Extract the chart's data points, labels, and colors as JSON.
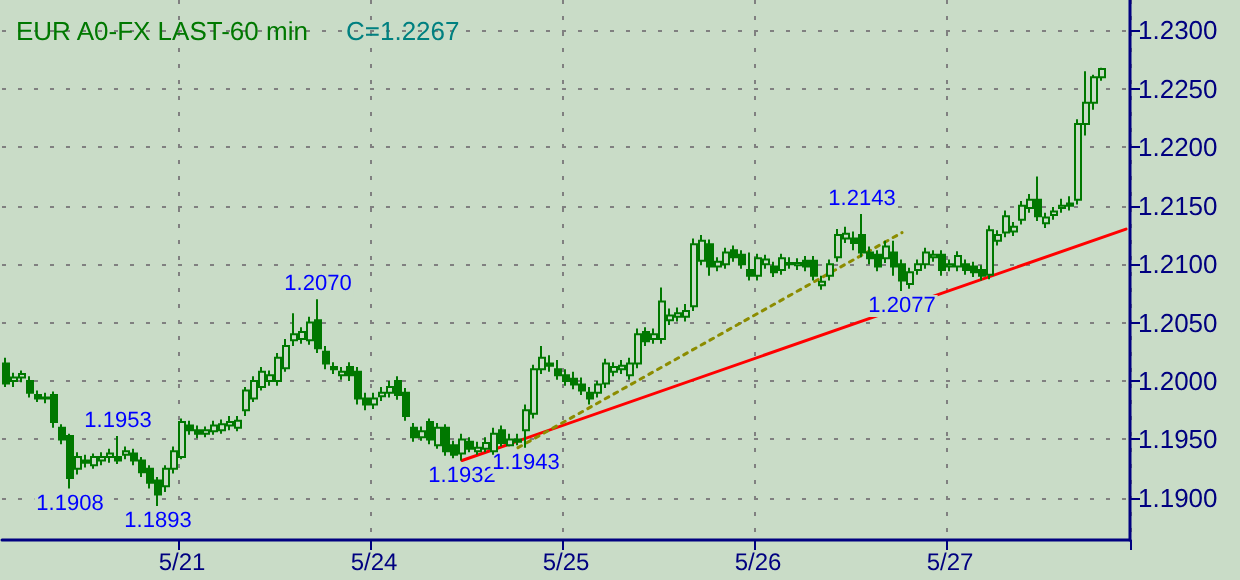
{
  "chart_data": {
    "type": "candlestick",
    "title": "EUR A0-FX LAST-60 min",
    "annotations": [
      "C=1.2267",
      {
        "text": "1.1908",
        "y": 1.1908
      },
      {
        "text": "1.1953",
        "y": 1.1953
      },
      {
        "text": "1.1893",
        "y": 1.1893
      },
      {
        "text": "1.2070",
        "y": 1.207
      },
      {
        "text": "1.1932",
        "y": 1.1932
      },
      {
        "text": "1.1943",
        "y": 1.1943
      },
      {
        "text": "1.2143",
        "y": 1.2143
      },
      {
        "text": "1.2077",
        "y": 1.2077
      }
    ],
    "color": "#007800",
    "categories": [
      null,
      null,
      null,
      null,
      null,
      null,
      null,
      null,
      null,
      null,
      null,
      null,
      null,
      null,
      null,
      null,
      null,
      null,
      null,
      null,
      null,
      null,
      "5/21",
      null,
      null,
      null,
      null,
      null,
      null,
      null,
      null,
      null,
      null,
      null,
      null,
      null,
      null,
      null,
      null,
      null,
      null,
      null,
      null,
      null,
      null,
      null,
      "5/24",
      null,
      null,
      null,
      null,
      null,
      null,
      null,
      null,
      null,
      null,
      null,
      null,
      null,
      null,
      null,
      null,
      null,
      null,
      null,
      null,
      null,
      null,
      null,
      "5/25",
      null,
      null,
      null,
      null,
      null,
      null,
      null,
      null,
      null,
      null,
      null,
      null,
      null,
      null,
      null,
      null,
      null,
      null,
      null,
      null,
      null,
      null,
      null,
      "5/26",
      null,
      null,
      null,
      null,
      null,
      null,
      null,
      null,
      null,
      null,
      null,
      null,
      null,
      null,
      null,
      null,
      null,
      null,
      null,
      null,
      null,
      null,
      null,
      "5/27",
      null,
      null,
      null,
      null,
      null,
      null,
      null,
      null,
      null,
      null,
      null,
      null,
      null,
      null,
      null,
      null,
      null,
      null,
      null,
      null,
      null,
      null
    ],
    "ohlc": [
      [
        1.2015,
        1.202,
        1.1995,
        1.1998
      ],
      [
        1.2,
        1.2007,
        1.1995,
        1.2003
      ],
      [
        1.2003,
        1.2009,
        1.1999,
        1.2006
      ],
      [
        1.2,
        1.2004,
        1.1986,
        1.199
      ],
      [
        1.1988,
        1.1992,
        1.1982,
        1.1985
      ],
      [
        1.1985,
        1.199,
        1.1981,
        1.1986
      ],
      [
        1.1988,
        1.1991,
        1.196,
        1.1965
      ],
      [
        1.196,
        1.1963,
        1.1946,
        1.195
      ],
      [
        1.1953,
        1.1955,
        1.1908,
        1.1917
      ],
      [
        1.1925,
        1.1939,
        1.192,
        1.1935
      ],
      [
        1.1932,
        1.1937,
        1.1926,
        1.193
      ],
      [
        1.1928,
        1.1938,
        1.1925,
        1.1935
      ],
      [
        1.1932,
        1.1939,
        1.1928,
        1.1935
      ],
      [
        1.1935,
        1.1942,
        1.193,
        1.1938
      ],
      [
        1.1935,
        1.1953,
        1.1929,
        1.1932
      ],
      [
        1.1937,
        1.1944,
        1.1933,
        1.194
      ],
      [
        1.1938,
        1.1942,
        1.1928,
        1.1932
      ],
      [
        1.1932,
        1.1935,
        1.1918,
        1.1922
      ],
      [
        1.1925,
        1.1928,
        1.1908,
        1.1913
      ],
      [
        1.1915,
        1.1918,
        1.1893,
        1.1903
      ],
      [
        1.191,
        1.1928,
        1.1905,
        1.1925
      ],
      [
        1.1925,
        1.1944,
        1.1921,
        1.194
      ],
      [
        1.1935,
        1.1968,
        1.1933,
        1.1965
      ],
      [
        1.1962,
        1.1966,
        1.1954,
        1.1958
      ],
      [
        1.1958,
        1.1962,
        1.1951,
        1.1955
      ],
      [
        1.1955,
        1.1961,
        1.1952,
        1.1958
      ],
      [
        1.1957,
        1.1966,
        1.1954,
        1.1962
      ],
      [
        1.1958,
        1.1967,
        1.1955,
        1.1963
      ],
      [
        1.1962,
        1.197,
        1.1958,
        1.1965
      ],
      [
        1.196,
        1.197,
        1.1957,
        1.1966
      ],
      [
        1.1975,
        1.1995,
        1.197,
        1.1992
      ],
      [
        1.1985,
        1.2004,
        1.1982,
        1.2
      ],
      [
        1.1995,
        1.2012,
        1.1992,
        1.2008
      ],
      [
        1.2,
        1.2009,
        1.1996,
        1.2005
      ],
      [
        1.2,
        1.2024,
        1.1996,
        1.202
      ],
      [
        1.2011,
        1.2036,
        1.2008,
        1.203
      ],
      [
        1.2035,
        1.2058,
        1.203,
        1.204
      ],
      [
        1.2036,
        1.2046,
        1.2032,
        1.2042
      ],
      [
        1.2035,
        1.2055,
        1.2031,
        1.205
      ],
      [
        1.2052,
        1.207,
        1.2024,
        1.2028
      ],
      [
        1.2025,
        1.203,
        1.201,
        1.2015
      ],
      [
        1.2012,
        1.2016,
        1.2006,
        1.201
      ],
      [
        1.2005,
        1.2012,
        1.2001,
        1.2008
      ],
      [
        1.2012,
        1.2016,
        1.2,
        1.2005
      ],
      [
        1.2008,
        1.2012,
        1.198,
        1.1985
      ],
      [
        1.1985,
        1.199,
        1.1975,
        1.198
      ],
      [
        1.198,
        1.199,
        1.1976,
        1.1985
      ],
      [
        1.1987,
        1.1995,
        1.1983,
        1.199
      ],
      [
        1.199,
        1.2,
        1.1986,
        1.1995
      ],
      [
        1.2,
        1.2004,
        1.1984,
        1.1988
      ],
      [
        1.199,
        1.1994,
        1.1966,
        1.197
      ],
      [
        1.196,
        1.1964,
        1.1948,
        1.1952
      ],
      [
        1.1952,
        1.1961,
        1.1949,
        1.1957
      ],
      [
        1.1965,
        1.1968,
        1.1946,
        1.195
      ],
      [
        1.1945,
        1.1964,
        1.1942,
        1.196
      ],
      [
        1.196,
        1.1963,
        1.1936,
        1.194
      ],
      [
        1.1945,
        1.1949,
        1.1934,
        1.1937
      ],
      [
        1.1938,
        1.1955,
        1.1932,
        1.195
      ],
      [
        1.1948,
        1.1952,
        1.1939,
        1.1942
      ],
      [
        1.194,
        1.1948,
        1.1937,
        1.1943
      ],
      [
        1.1942,
        1.1952,
        1.1939,
        1.1947
      ],
      [
        1.194,
        1.196,
        1.1937,
        1.1955
      ],
      [
        1.1958,
        1.1962,
        1.1944,
        1.1947
      ],
      [
        1.1945,
        1.1955,
        1.1944,
        1.195
      ],
      [
        1.195,
        1.1955,
        1.1945,
        1.1948
      ],
      [
        1.1958,
        1.198,
        1.1943,
        1.1975
      ],
      [
        1.1972,
        1.2014,
        1.1968,
        1.201
      ],
      [
        1.201,
        1.203,
        1.2006,
        1.202
      ],
      [
        1.2015,
        1.2022,
        1.2008,
        1.2013
      ],
      [
        1.201,
        1.2018,
        1.2001,
        1.2005
      ],
      [
        1.2005,
        1.201,
        1.1996,
        1.2
      ],
      [
        1.2002,
        1.2008,
        1.1993,
        1.1997
      ],
      [
        1.1997,
        1.2003,
        1.1988,
        1.1992
      ],
      [
        1.199,
        1.1995,
        1.198,
        1.1985
      ],
      [
        1.199,
        1.2,
        1.1986,
        1.1997
      ],
      [
        1.1998,
        1.2019,
        1.1994,
        1.2015
      ],
      [
        1.2008,
        1.2016,
        1.2004,
        1.2012
      ],
      [
        1.201,
        1.2018,
        1.2006,
        1.2013
      ],
      [
        1.2005,
        1.202,
        1.2001,
        1.2015
      ],
      [
        1.2015,
        1.2045,
        1.2011,
        1.204
      ],
      [
        1.2042,
        1.2046,
        1.203,
        1.2034
      ],
      [
        1.2036,
        1.2045,
        1.2032,
        1.204
      ],
      [
        1.2036,
        1.208,
        1.2032,
        1.2068
      ],
      [
        1.2052,
        1.2062,
        1.2048,
        1.2056
      ],
      [
        1.2055,
        1.2063,
        1.2051,
        1.2058
      ],
      [
        1.2055,
        1.2066,
        1.2051,
        1.206
      ],
      [
        1.2064,
        1.2122,
        1.206,
        1.2117
      ],
      [
        1.2103,
        1.2125,
        1.2099,
        1.212
      ],
      [
        1.2117,
        1.2121,
        1.209,
        1.2098
      ],
      [
        1.2098,
        1.2106,
        1.2094,
        1.2102
      ],
      [
        1.21,
        1.2114,
        1.2096,
        1.211
      ],
      [
        1.2112,
        1.2116,
        1.2102,
        1.2106
      ],
      [
        1.2108,
        1.2112,
        1.2096,
        1.21
      ],
      [
        1.2095,
        1.211,
        1.2086,
        1.209
      ],
      [
        1.209,
        1.2109,
        1.2086,
        1.2105
      ],
      [
        1.21,
        1.2108,
        1.2096,
        1.2104
      ],
      [
        1.2098,
        1.2102,
        1.2089,
        1.2093
      ],
      [
        1.2095,
        1.2109,
        1.2091,
        1.2105
      ],
      [
        1.21,
        1.2106,
        1.2096,
        1.2101
      ],
      [
        1.2099,
        1.2105,
        1.2095,
        1.2101
      ],
      [
        1.2103,
        1.2107,
        1.2094,
        1.2098
      ],
      [
        1.2103,
        1.2107,
        1.2086,
        1.209
      ],
      [
        1.2082,
        1.209,
        1.2078,
        1.2085
      ],
      [
        1.209,
        1.2104,
        1.2086,
        1.21
      ],
      [
        1.2106,
        1.213,
        1.2102,
        1.2125
      ],
      [
        1.2122,
        1.2132,
        1.2118,
        1.2126
      ],
      [
        1.2122,
        1.2128,
        1.2112,
        1.2118
      ],
      [
        1.2125,
        1.2143,
        1.2106,
        1.211
      ],
      [
        1.211,
        1.2115,
        1.21,
        1.2105
      ],
      [
        1.2108,
        1.2112,
        1.2094,
        1.2098
      ],
      [
        1.2105,
        1.212,
        1.2101,
        1.2115
      ],
      [
        1.211,
        1.212,
        1.209,
        1.2098
      ],
      [
        1.21,
        1.2104,
        1.2077,
        1.2086
      ],
      [
        1.2083,
        1.2097,
        1.2079,
        1.2093
      ],
      [
        1.2095,
        1.2104,
        1.2091,
        1.21
      ],
      [
        1.21,
        1.2114,
        1.2096,
        1.211
      ],
      [
        1.2106,
        1.2112,
        1.2102,
        1.2108
      ],
      [
        1.2108,
        1.2112,
        1.209,
        1.2095
      ],
      [
        1.2098,
        1.2104,
        1.2094,
        1.21
      ],
      [
        1.2098,
        1.2111,
        1.2094,
        1.2107
      ],
      [
        1.21,
        1.2104,
        1.2091,
        1.2095
      ],
      [
        1.2098,
        1.2102,
        1.2089,
        1.2093
      ],
      [
        1.2095,
        1.2099,
        1.2086,
        1.209
      ],
      [
        1.2091,
        1.2133,
        1.2087,
        1.2129
      ],
      [
        1.212,
        1.2129,
        1.2116,
        1.2125
      ],
      [
        1.2127,
        1.2146,
        1.2123,
        1.2141
      ],
      [
        1.2128,
        1.2136,
        1.2124,
        1.2132
      ],
      [
        1.2138,
        1.2154,
        1.2134,
        1.215
      ],
      [
        1.2148,
        1.216,
        1.2144,
        1.2155
      ],
      [
        1.2155,
        1.2175,
        1.2137,
        1.2141
      ],
      [
        1.2135,
        1.2144,
        1.2131,
        1.214
      ],
      [
        1.2142,
        1.2149,
        1.2138,
        1.2145
      ],
      [
        1.2148,
        1.2156,
        1.2144,
        1.215
      ],
      [
        1.2152,
        1.2158,
        1.2146,
        1.215
      ],
      [
        1.2155,
        1.2224,
        1.2151,
        1.222
      ],
      [
        1.222,
        1.2265,
        1.221,
        1.2238
      ],
      [
        1.2238,
        1.2262,
        1.2232,
        1.226
      ],
      [
        1.226,
        1.2268,
        1.2257,
        1.2267
      ],
      null,
      null,
      null
    ],
    "series": [
      {
        "type": "line",
        "color": "#ff0000",
        "line_style": "solid",
        "values": [
          null,
          null,
          null,
          null,
          null,
          null,
          null,
          null,
          null,
          null,
          null,
          null,
          null,
          null,
          null,
          null,
          null,
          null,
          null,
          null,
          null,
          null,
          null,
          null,
          null,
          null,
          null,
          null,
          null,
          null,
          null,
          null,
          null,
          null,
          null,
          null,
          null,
          null,
          null,
          null,
          null,
          null,
          null,
          null,
          null,
          null,
          null,
          null,
          null,
          null,
          null,
          null,
          null,
          null,
          null,
          null,
          null,
          1.1932,
          null,
          null,
          null,
          null,
          null,
          null,
          null,
          null,
          null,
          null,
          null,
          null,
          null,
          null,
          null,
          null,
          null,
          null,
          null,
          null,
          null,
          null,
          null,
          null,
          null,
          null,
          null,
          null,
          null,
          null,
          null,
          null,
          null,
          null,
          null,
          null,
          null,
          null,
          null,
          null,
          null,
          null,
          null,
          null,
          null,
          null,
          null,
          null,
          null,
          null,
          null,
          null,
          null,
          null,
          null,
          null,
          null,
          null,
          null,
          null,
          null,
          null,
          null,
          null,
          null,
          null,
          null,
          null,
          null,
          null,
          null,
          null,
          null,
          null,
          null,
          null,
          null,
          null,
          null,
          null,
          null,
          null,
          1.213
        ]
      },
      {
        "type": "line",
        "color": "#8c8c00",
        "line_style": "dotted",
        "values": [
          null,
          null,
          null,
          null,
          null,
          null,
          null,
          null,
          null,
          null,
          null,
          null,
          null,
          null,
          null,
          null,
          null,
          null,
          null,
          null,
          null,
          null,
          null,
          null,
          null,
          null,
          null,
          null,
          null,
          null,
          null,
          null,
          null,
          null,
          null,
          null,
          null,
          null,
          null,
          null,
          null,
          null,
          null,
          null,
          null,
          null,
          null,
          null,
          null,
          null,
          null,
          null,
          null,
          null,
          null,
          null,
          null,
          null,
          null,
          null,
          null,
          null,
          null,
          null,
          1.1943,
          null,
          null,
          null,
          null,
          null,
          null,
          null,
          null,
          null,
          null,
          null,
          null,
          null,
          null,
          null,
          null,
          null,
          null,
          null,
          null,
          null,
          null,
          null,
          null,
          null,
          null,
          null,
          null,
          null,
          null,
          null,
          null,
          null,
          null,
          null,
          null,
          null,
          null,
          null,
          null,
          null,
          null,
          null,
          null,
          null,
          null,
          null,
          1.2127,
          null,
          null,
          null,
          null,
          null,
          null,
          null,
          null,
          null,
          null,
          null,
          null,
          null,
          null,
          null,
          null,
          null,
          null,
          null,
          null,
          null,
          null,
          null,
          null,
          null,
          null,
          null,
          null
        ]
      }
    ],
    "ylim": [
      1.1864,
      1.2326
    ],
    "yticks": [
      {
        "value": 1.19,
        "label": "1.1900"
      },
      {
        "value": 1.195,
        "label": "1.1950"
      },
      {
        "value": 1.2,
        "label": "1.2000"
      },
      {
        "value": 1.205,
        "label": "1.2050"
      },
      {
        "value": 1.21,
        "label": "1.2100"
      },
      {
        "value": 1.215,
        "label": "1.2150"
      },
      {
        "value": 1.22,
        "label": "1.2200"
      },
      {
        "value": 1.225,
        "label": "1.2250"
      },
      {
        "value": 1.23,
        "label": "1.2300"
      }
    ],
    "grid": true
  }
}
